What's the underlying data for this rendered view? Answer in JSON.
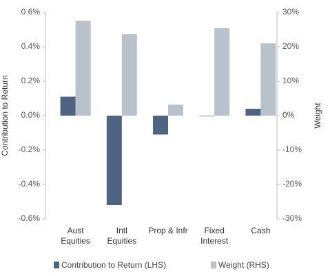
{
  "chart_data": {
    "type": "bar",
    "y_label": "Contribution to Return",
    "y2_label": "Weight",
    "categories": [
      "Aust\nEquities",
      "Intl\nEquities",
      "Prop & Infr",
      "Fixed\nInterest",
      "Cash"
    ],
    "series": [
      {
        "name": "Contribution to Return (LHS)",
        "color": "#4f6382",
        "values": [
          0.11,
          -0.52,
          -0.11,
          -0.003,
          0.04
        ]
      },
      {
        "name": "Weight (RHS)",
        "color": "#b9c1cb",
        "axis": "y2",
        "values": [
          27.6,
          23.7,
          3.2,
          25.4,
          21
        ]
      }
    ],
    "ylim": [
      -0.6,
      0.6
    ],
    "yticks": [
      {
        "value": -0.6,
        "label": "-0.6%"
      },
      {
        "value": -0.4,
        "label": "-0.4%"
      },
      {
        "value": -0.2,
        "label": "-0.2%"
      },
      {
        "value": 0,
        "label": "0.0%"
      },
      {
        "value": 0.2,
        "label": "0.2%"
      },
      {
        "value": 0.4,
        "label": "0.4%"
      },
      {
        "value": 0.6,
        "label": "0.6%"
      }
    ],
    "y2lim": [
      -30,
      30
    ],
    "y2ticks": [
      {
        "value": -30,
        "label": "-30%"
      },
      {
        "value": -20,
        "label": "-20%"
      },
      {
        "value": -10,
        "label": "-10%"
      },
      {
        "value": 0,
        "label": "0%"
      },
      {
        "value": 10,
        "label": "10%"
      },
      {
        "value": 20,
        "label": "20%"
      },
      {
        "value": 30,
        "label": "30%"
      }
    ],
    "legend": "bottom"
  }
}
